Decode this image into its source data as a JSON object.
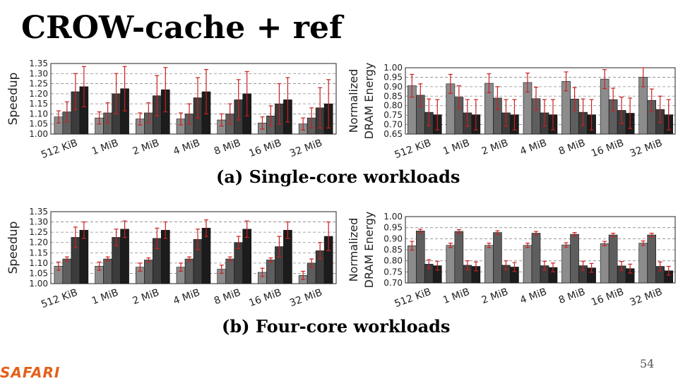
{
  "slide": {
    "title": "CROW-cache + ref",
    "caption_a": "(a) Single-core workloads",
    "caption_b": "(b) Four-core workloads",
    "logo": "SAFARI",
    "page_number": "54"
  },
  "colors": {
    "bars": [
      "#8c8c8c",
      "#5e5e5e",
      "#3c3c3c",
      "#1c1c1c"
    ],
    "error_bar": "#cc1f1f",
    "grid": "#888888",
    "logo": "#e2611a"
  },
  "chart_data": [
    {
      "type": "bar",
      "ylabel": "Speedup",
      "categories": [
        "512 KiB",
        "1 MiB",
        "2 MiB",
        "4 MiB",
        "8 MiB",
        "16 MiB",
        "32 MiB"
      ],
      "ylim": [
        1.0,
        1.35
      ],
      "yticks": [
        "1.00",
        "1.05",
        "1.10",
        "1.15",
        "1.20",
        "1.25",
        "1.30",
        "1.35"
      ],
      "grid": true,
      "series": [
        {
          "values": [
            1.085,
            1.08,
            1.075,
            1.075,
            1.07,
            1.055,
            1.05
          ],
          "err": [
            0.03,
            0.03,
            0.03,
            0.03,
            0.03,
            0.03,
            0.03
          ]
        },
        {
          "values": [
            1.11,
            1.105,
            1.105,
            1.1,
            1.1,
            1.09,
            1.08
          ],
          "err": [
            0.05,
            0.05,
            0.05,
            0.05,
            0.05,
            0.05,
            0.05
          ]
        },
        {
          "values": [
            1.21,
            1.2,
            1.19,
            1.18,
            1.17,
            1.15,
            1.13
          ],
          "err": [
            0.09,
            0.1,
            0.1,
            0.1,
            0.1,
            0.1,
            0.1
          ]
        },
        {
          "values": [
            1.235,
            1.225,
            1.22,
            1.21,
            1.2,
            1.17,
            1.15
          ],
          "err": [
            0.1,
            0.11,
            0.11,
            0.11,
            0.11,
            0.11,
            0.12
          ]
        }
      ]
    },
    {
      "type": "bar",
      "ylabel": "Normalized DRAM Energy",
      "categories": [
        "512 KiB",
        "1 MiB",
        "2 MiB",
        "4 MiB",
        "8 MiB",
        "16 MiB",
        "32 MiB"
      ],
      "ylim": [
        0.65,
        1.0
      ],
      "yticks": [
        "0.65",
        "0.70",
        "0.75",
        "0.80",
        "0.85",
        "0.90",
        "0.95",
        "1.00"
      ],
      "grid": true,
      "series": [
        {
          "values": [
            0.905,
            0.915,
            0.918,
            0.922,
            0.928,
            0.94,
            0.95
          ],
          "err": [
            0.06,
            0.05,
            0.05,
            0.05,
            0.05,
            0.05,
            0.05
          ]
        },
        {
          "values": [
            0.855,
            0.845,
            0.84,
            0.837,
            0.835,
            0.832,
            0.828
          ],
          "err": [
            0.06,
            0.06,
            0.06,
            0.06,
            0.06,
            0.06,
            0.06
          ]
        },
        {
          "values": [
            0.765,
            0.762,
            0.762,
            0.762,
            0.765,
            0.775,
            0.78
          ],
          "err": [
            0.07,
            0.07,
            0.07,
            0.07,
            0.07,
            0.07,
            0.07
          ]
        },
        {
          "values": [
            0.752,
            0.752,
            0.752,
            0.752,
            0.752,
            0.76,
            0.752
          ],
          "err": [
            0.08,
            0.08,
            0.08,
            0.08,
            0.08,
            0.08,
            0.08
          ]
        }
      ]
    },
    {
      "type": "bar",
      "ylabel": "Speedup",
      "categories": [
        "512 KiB",
        "1 MiB",
        "2 MiB",
        "4 MiB",
        "8 MiB",
        "16 MiB",
        "32 MiB"
      ],
      "ylim": [
        1.0,
        1.35
      ],
      "yticks": [
        "1.00",
        "1.05",
        "1.10",
        "1.15",
        "1.20",
        "1.25",
        "1.30",
        "1.35"
      ],
      "grid": true,
      "series": [
        {
          "values": [
            1.085,
            1.085,
            1.08,
            1.08,
            1.07,
            1.055,
            1.04
          ],
          "err": [
            0.02,
            0.02,
            0.02,
            0.02,
            0.02,
            0.02,
            0.02
          ]
        },
        {
          "values": [
            1.12,
            1.12,
            1.115,
            1.12,
            1.12,
            1.115,
            1.1
          ],
          "err": [
            0.01,
            0.01,
            0.01,
            0.01,
            0.01,
            0.01,
            0.02
          ]
        },
        {
          "values": [
            1.225,
            1.225,
            1.22,
            1.215,
            1.2,
            1.18,
            1.16
          ],
          "err": [
            0.05,
            0.04,
            0.05,
            0.05,
            0.03,
            0.05,
            0.04
          ]
        },
        {
          "values": [
            1.26,
            1.265,
            1.26,
            1.27,
            1.265,
            1.26,
            1.23
          ],
          "err": [
            0.04,
            0.04,
            0.04,
            0.04,
            0.04,
            0.04,
            0.07
          ]
        }
      ]
    },
    {
      "type": "bar",
      "ylabel": "Normalized DRAM Energy",
      "categories": [
        "512 KiB",
        "1 MiB",
        "2 MiB",
        "4 MiB",
        "8 MiB",
        "16 MiB",
        "32 MiB"
      ],
      "ylim": [
        0.7,
        1.0
      ],
      "yticks": [
        "0.70",
        "0.75",
        "0.80",
        "0.85",
        "0.90",
        "0.95",
        "1.00"
      ],
      "grid": true,
      "series": [
        {
          "values": [
            0.868,
            0.87,
            0.87,
            0.87,
            0.872,
            0.878,
            0.88
          ],
          "err": [
            0.02,
            0.01,
            0.01,
            0.01,
            0.01,
            0.01,
            0.01
          ]
        },
        {
          "values": [
            0.935,
            0.933,
            0.928,
            0.925,
            0.92,
            0.917,
            0.917
          ],
          "err": [
            0.008,
            0.008,
            0.008,
            0.008,
            0.008,
            0.008,
            0.008
          ]
        },
        {
          "values": [
            0.785,
            0.78,
            0.78,
            0.778,
            0.778,
            0.777,
            0.775
          ],
          "err": [
            0.02,
            0.02,
            0.02,
            0.02,
            0.02,
            0.02,
            0.02
          ]
        },
        {
          "values": [
            0.778,
            0.775,
            0.772,
            0.77,
            0.768,
            0.765,
            0.755
          ],
          "err": [
            0.02,
            0.02,
            0.02,
            0.02,
            0.02,
            0.02,
            0.02
          ]
        }
      ]
    }
  ]
}
